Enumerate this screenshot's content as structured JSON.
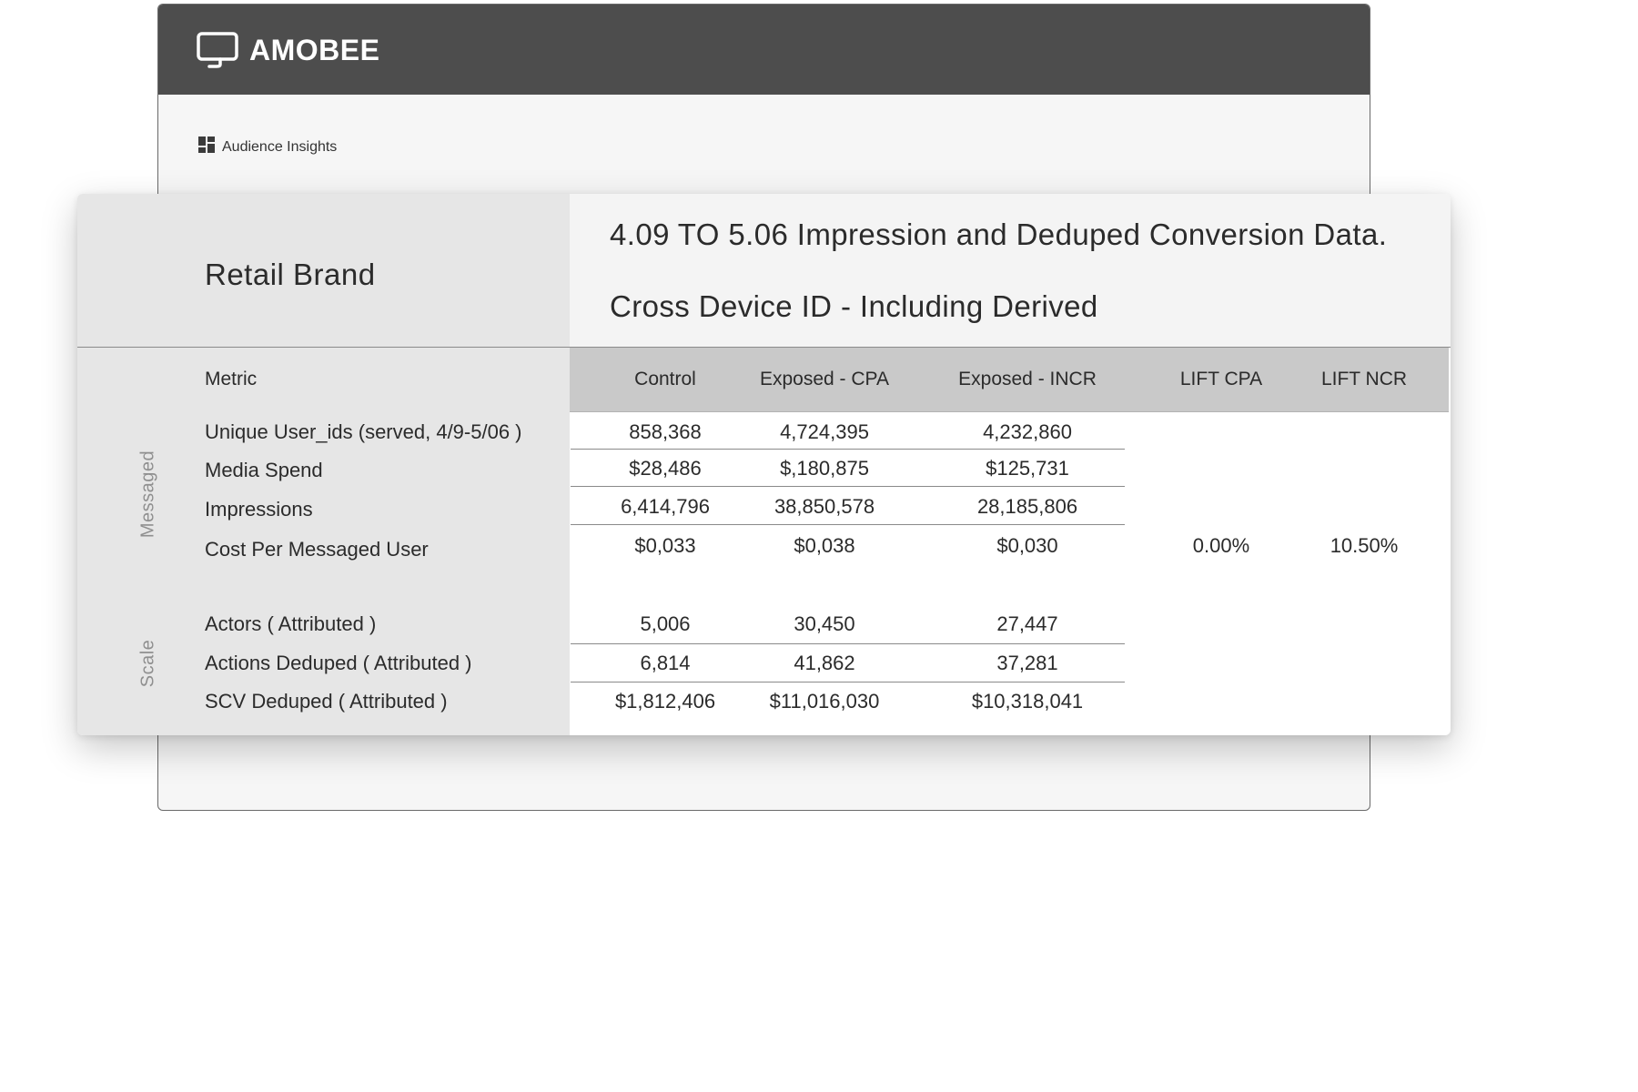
{
  "app": {
    "brand_name": "AMOBEE",
    "nav_label": "Audience Insights"
  },
  "report": {
    "brand": "Retail Brand",
    "title_line1": "4.09 TO 5.06 Impression and Deduped Conversion Data.",
    "title_line2": "Cross Device ID - Including Derived"
  },
  "table": {
    "headers": [
      "Metric",
      "Control",
      "Exposed - CPA",
      "Exposed - INCR",
      "LIFT CPA",
      "LIFT NCR"
    ],
    "sections": [
      "Messaged",
      "Scale"
    ],
    "rows": [
      {
        "label": "Unique User_ids (served, 4/9-5/06 )",
        "control": "858,368",
        "exposed_cpa": "4,724,395",
        "exposed_incr": "4,232,860"
      },
      {
        "label": "Media Spend",
        "control": "$28,486",
        "exposed_cpa": "$,180,875",
        "exposed_incr": "$125,731"
      },
      {
        "label": "Impressions",
        "control": "6,414,796",
        "exposed_cpa": "38,850,578",
        "exposed_incr": "28,185,806"
      },
      {
        "label": "Cost Per Messaged User",
        "control": "$0,033",
        "exposed_cpa": "$0,038",
        "exposed_incr": "$0,030"
      },
      {
        "label": "Actors ( Attributed )",
        "control": "5,006",
        "exposed_cpa": "30,450",
        "exposed_incr": "27,447"
      },
      {
        "label": "Actions Deduped ( Attributed )",
        "control": "6,814",
        "exposed_cpa": "41,862",
        "exposed_incr": "37,281"
      },
      {
        "label": "SCV Deduped ( Attributed )",
        "control": "$1,812,406",
        "exposed_cpa": "$11,016,030",
        "exposed_incr": "$10,318,041"
      }
    ],
    "lift_cpa": "0.00%",
    "lift_ncr": "10.50%"
  }
}
